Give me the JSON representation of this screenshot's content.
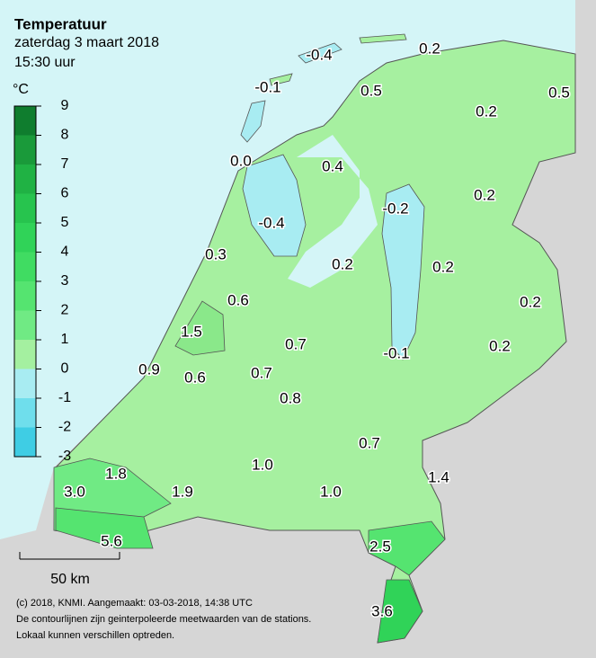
{
  "header": {
    "title": "Temperatuur",
    "date": "zaterdag 3 maart 2018",
    "time": "15:30 uur"
  },
  "legend": {
    "unit": "°C",
    "ticks": [
      9,
      8,
      7,
      6,
      5,
      4,
      3,
      2,
      1,
      0,
      -1,
      -2,
      -3
    ],
    "colors": [
      "#0f7d2e",
      "#1a9a3a",
      "#20b244",
      "#27c44e",
      "#30d358",
      "#40dc62",
      "#55e470",
      "#70ea84",
      "#a4f0a0",
      "#a8ecf2",
      "#6fdeec",
      "#3fcde4"
    ]
  },
  "stations": [
    "-0.4",
    "0.2",
    "-0.1",
    "0.5",
    "0.5",
    "0.2",
    "0.0",
    "0.4",
    "-0.2",
    "0.2",
    "-0.4",
    "0.3",
    "0.2",
    "0.2",
    "0.2",
    "0.6",
    "1.5",
    "0.7",
    "0.2",
    "-0.1",
    "0.9",
    "0.6",
    "0.7",
    "0.8",
    "0.7",
    "1.0",
    "1.4",
    "1.8",
    "1.9",
    "3.0",
    "1.0",
    "5.6",
    "2.5",
    "3.6"
  ],
  "scale": "50 km",
  "footer": [
    "(c) 2018, KNMI. Aangemaakt: 03-03-2018, 14:38 UTC",
    "De contourlijnen zijn geinterpoleerde meetwaarden van de stations.",
    "Lokaal kunnen verschillen optreden."
  ]
}
